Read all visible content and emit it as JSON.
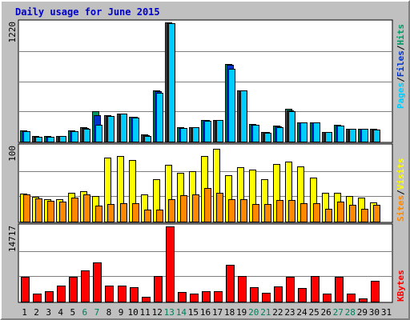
{
  "title": "Daily usage for June 2015",
  "colors": {
    "pages": "#00ccff",
    "files": "#0033cc",
    "hits": "#009966",
    "visits": "#ffff00",
    "sites": "#ff8800",
    "kbytes": "#ff0000",
    "weekend_day": "#00805c",
    "weekday": "#000000",
    "frame": "#c0c0c0",
    "panel": "#ffffff"
  },
  "labels": {
    "pages": "Pages",
    "files": "Files",
    "hits": "Hits",
    "sep": "/",
    "sites": "Sites",
    "visits": "Visits",
    "kbytes": "KBytes"
  },
  "chart_data": [
    {
      "type": "bar",
      "panel": "hits_files_pages",
      "ymax_label": "1220",
      "ylim": [
        0,
        1220
      ],
      "categories": [
        "1",
        "2",
        "3",
        "4",
        "5",
        "6",
        "7",
        "8",
        "9",
        "10",
        "11",
        "12",
        "13",
        "14",
        "15",
        "16",
        "17",
        "18",
        "19",
        "20",
        "21",
        "22",
        "23",
        "24",
        "25",
        "26",
        "27",
        "28",
        "29",
        "30",
        "31"
      ],
      "weekend_days": [
        "6",
        "7",
        "13",
        "14",
        "20",
        "21",
        "27",
        "28"
      ],
      "series": [
        {
          "name": "Hits",
          "values": [
            115,
            55,
            55,
            60,
            115,
            150,
            310,
            270,
            290,
            250,
            70,
            525,
            1220,
            145,
            150,
            225,
            225,
            795,
            525,
            180,
            100,
            160,
            335,
            200,
            200,
            100,
            170,
            135,
            135,
            130,
            0
          ]
        },
        {
          "name": "Files",
          "values": [
            110,
            50,
            50,
            55,
            110,
            140,
            270,
            265,
            285,
            250,
            65,
            515,
            1215,
            140,
            145,
            220,
            225,
            790,
            520,
            175,
            95,
            155,
            320,
            195,
            195,
            95,
            165,
            130,
            130,
            125,
            0
          ]
        },
        {
          "name": "Pages",
          "values": [
            110,
            50,
            50,
            60,
            110,
            130,
            170,
            265,
            285,
            245,
            60,
            500,
            1215,
            140,
            145,
            215,
            225,
            745,
            520,
            175,
            90,
            150,
            315,
            195,
            195,
            95,
            160,
            130,
            130,
            125,
            0
          ]
        }
      ]
    },
    {
      "type": "bar",
      "panel": "visits_sites",
      "ymax_label": "100",
      "ylim": [
        0,
        100
      ],
      "categories": [
        "1",
        "2",
        "3",
        "4",
        "5",
        "6",
        "7",
        "8",
        "9",
        "10",
        "11",
        "12",
        "13",
        "14",
        "15",
        "16",
        "17",
        "18",
        "19",
        "20",
        "21",
        "22",
        "23",
        "24",
        "25",
        "26",
        "27",
        "28",
        "29",
        "30",
        "31"
      ],
      "series": [
        {
          "name": "Visits",
          "values": [
            37,
            33,
            30,
            30,
            38,
            40,
            34,
            85,
            87,
            82,
            36,
            56,
            76,
            65,
            67,
            87,
            97,
            62,
            72,
            69,
            56,
            77,
            80,
            73,
            58,
            38,
            38,
            34,
            32,
            25,
            0
          ]
        },
        {
          "name": "Sites",
          "values": [
            36,
            31,
            28,
            27,
            32,
            36,
            21,
            23,
            24,
            24,
            16,
            16,
            30,
            35,
            36,
            45,
            38,
            30,
            30,
            23,
            23,
            29,
            29,
            24,
            24,
            17,
            27,
            22,
            17,
            22,
            0
          ]
        }
      ]
    },
    {
      "type": "bar",
      "panel": "kbytes",
      "ymax_label": "14717",
      "ylim": [
        0,
        14717
      ],
      "categories": [
        "1",
        "2",
        "3",
        "4",
        "5",
        "6",
        "7",
        "8",
        "9",
        "10",
        "11",
        "12",
        "13",
        "14",
        "15",
        "16",
        "17",
        "18",
        "19",
        "20",
        "21",
        "22",
        "23",
        "24",
        "25",
        "26",
        "27",
        "28",
        "29",
        "30",
        "31"
      ],
      "series": [
        {
          "name": "KBytes",
          "values": [
            4800,
            1500,
            2000,
            3200,
            4900,
            6100,
            7600,
            3200,
            3100,
            2800,
            1000,
            5000,
            14717,
            1900,
            1600,
            2100,
            2100,
            7200,
            5000,
            2800,
            1800,
            2900,
            4900,
            2600,
            5000,
            1500,
            4800,
            1500,
            700,
            4100,
            0
          ]
        }
      ]
    }
  ]
}
